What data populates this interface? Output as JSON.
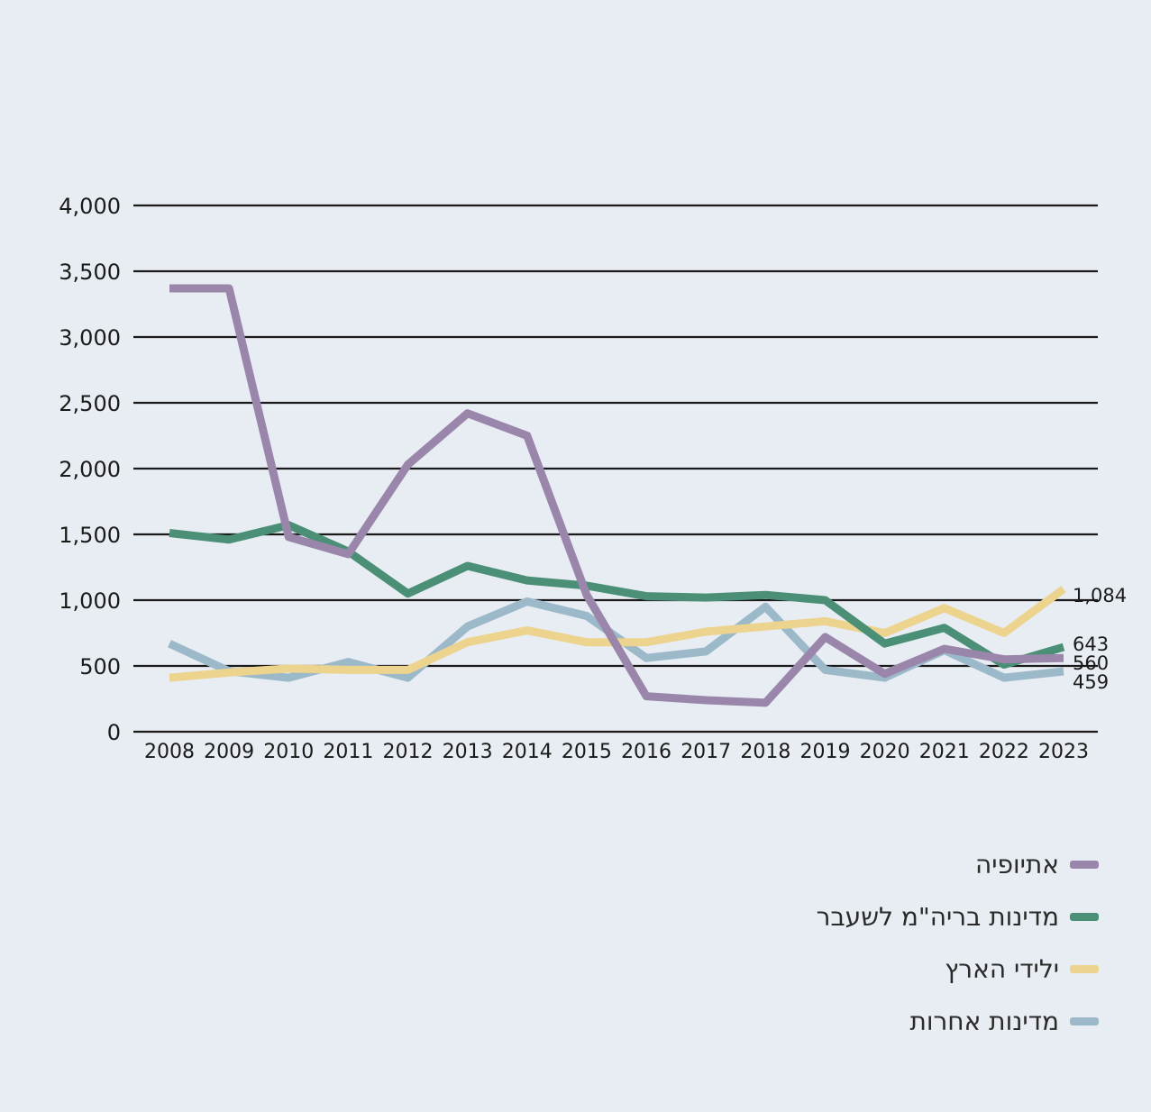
{
  "chart_data": {
    "type": "line",
    "title": "",
    "xlabel": "",
    "ylabel": "",
    "ylim": [
      0,
      4000
    ],
    "yticks": [
      0,
      500,
      1000,
      1500,
      2000,
      2500,
      3000,
      3500,
      4000
    ],
    "ytick_labels": [
      "0",
      "500",
      "1,000",
      "1,500",
      "2,000",
      "2,500",
      "3,000",
      "3,500",
      "4,000"
    ],
    "categories": [
      "2008",
      "2009",
      "2010",
      "2011",
      "2012",
      "2013",
      "2014",
      "2015",
      "2016",
      "2017",
      "2018",
      "2019",
      "2020",
      "2021",
      "2022",
      "2023"
    ],
    "grid": true,
    "legend_position": "bottom-right",
    "series": [
      {
        "name": "אתיופיה",
        "color": "#9b86ab",
        "values": [
          3370,
          3370,
          1480,
          1350,
          2030,
          2420,
          2250,
          1040,
          270,
          240,
          220,
          720,
          440,
          630,
          550,
          560
        ]
      },
      {
        "name": "מדינות בריה\"מ לשעבר",
        "color": "#4a8f76",
        "values": [
          1510,
          1460,
          1570,
          1370,
          1050,
          1260,
          1150,
          1110,
          1030,
          1020,
          1040,
          1000,
          670,
          790,
          510,
          643
        ]
      },
      {
        "name": "ילידי הארץ",
        "color": "#ecd38e",
        "values": [
          410,
          450,
          480,
          470,
          470,
          680,
          770,
          680,
          680,
          760,
          800,
          840,
          750,
          940,
          750,
          1084
        ]
      },
      {
        "name": "מדינות אחרות",
        "color": "#9bb9c9",
        "values": [
          670,
          460,
          410,
          530,
          410,
          800,
          990,
          880,
          560,
          610,
          950,
          470,
          410,
          620,
          410,
          459
        ]
      }
    ],
    "end_labels": [
      "1,084",
      "643",
      "560",
      "459"
    ]
  }
}
